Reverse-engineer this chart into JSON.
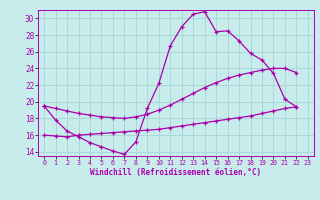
{
  "xlabel": "Windchill (Refroidissement éolien,°C)",
  "bg_color": "#c8ecec",
  "grid_color": "#a8d8d8",
  "line_color": "#aa00aa",
  "xlim": [
    -0.5,
    23.5
  ],
  "ylim": [
    13.5,
    31.0
  ],
  "xticks": [
    0,
    1,
    2,
    3,
    4,
    5,
    6,
    7,
    8,
    9,
    10,
    11,
    12,
    13,
    14,
    15,
    16,
    17,
    18,
    19,
    20,
    21,
    22,
    23
  ],
  "yticks": [
    14,
    16,
    18,
    20,
    22,
    24,
    26,
    28,
    30
  ],
  "line1_x": [
    0,
    1,
    2,
    3,
    4,
    5,
    6,
    7,
    8,
    9,
    10,
    11,
    12,
    13,
    14,
    15,
    16,
    17,
    18,
    19,
    20,
    21,
    22
  ],
  "line1_y": [
    19.5,
    17.8,
    16.5,
    15.8,
    15.1,
    14.6,
    14.1,
    13.7,
    15.2,
    19.2,
    22.2,
    26.7,
    29.0,
    30.5,
    30.8,
    28.4,
    28.5,
    27.3,
    25.8,
    25.0,
    23.4,
    20.3,
    19.4
  ],
  "line2_x": [
    0,
    1,
    2,
    3,
    4,
    5,
    6,
    7,
    8,
    9,
    10,
    11,
    12,
    13,
    14,
    15,
    16,
    17,
    18,
    19,
    20,
    21,
    22
  ],
  "line2_y": [
    19.5,
    19.2,
    18.9,
    18.6,
    18.4,
    18.2,
    18.1,
    18.0,
    18.2,
    18.5,
    19.0,
    19.6,
    20.3,
    21.0,
    21.7,
    22.3,
    22.8,
    23.2,
    23.5,
    23.8,
    24.0,
    24.0,
    23.5
  ],
  "line3_x": [
    0,
    1,
    2,
    3,
    4,
    5,
    6,
    7,
    8,
    9,
    10,
    11,
    12,
    13,
    14,
    15,
    16,
    17,
    18,
    19,
    20,
    21,
    22
  ],
  "line3_y": [
    16.0,
    15.9,
    15.8,
    16.0,
    16.1,
    16.2,
    16.3,
    16.4,
    16.5,
    16.6,
    16.7,
    16.9,
    17.1,
    17.3,
    17.5,
    17.7,
    17.9,
    18.1,
    18.3,
    18.6,
    18.9,
    19.2,
    19.4
  ]
}
